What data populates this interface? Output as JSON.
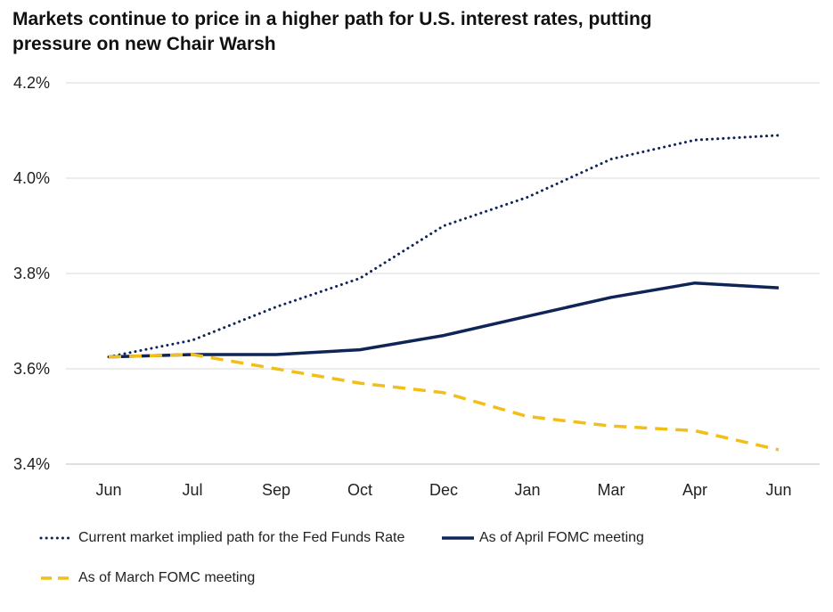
{
  "title": "Markets continue to price in a higher path for U.S. interest rates, putting pressure on new Chair Warsh",
  "colors": {
    "navy": "#0f2557",
    "gold": "#f1bf18",
    "grid": "#d9d9d9"
  },
  "chart_data": {
    "type": "line",
    "title": "Markets continue to price in a higher path for U.S. interest rates, putting pressure on new Chair Warsh",
    "xlabel": "",
    "ylabel": "",
    "categories": [
      "Jun",
      "Jul",
      "Sep",
      "Oct",
      "Dec",
      "Jan",
      "Mar",
      "Apr",
      "Jun"
    ],
    "ylim": [
      3.4,
      4.2
    ],
    "yticks": [
      3.4,
      3.6,
      3.8,
      4.0,
      4.2
    ],
    "ytick_labels": [
      "3.4%",
      "3.6%",
      "3.8%",
      "4.0%",
      "4.2%"
    ],
    "grid": true,
    "legend_position": "bottom",
    "series": [
      {
        "name": "Current market implied path for the Fed Funds Rate",
        "style": "dotted",
        "color": "#0f2557",
        "values": [
          3.625,
          3.66,
          3.73,
          3.79,
          3.9,
          3.96,
          4.04,
          4.08,
          4.09
        ]
      },
      {
        "name": "As of April FOMC meeting",
        "style": "solid",
        "color": "#0f2557",
        "values": [
          3.625,
          3.63,
          3.63,
          3.64,
          3.67,
          3.71,
          3.75,
          3.78,
          3.77
        ]
      },
      {
        "name": "As of March FOMC meeting",
        "style": "dashed",
        "color": "#f1bf18",
        "values": [
          3.625,
          3.63,
          3.6,
          3.57,
          3.55,
          3.5,
          3.48,
          3.47,
          3.43
        ]
      }
    ]
  }
}
